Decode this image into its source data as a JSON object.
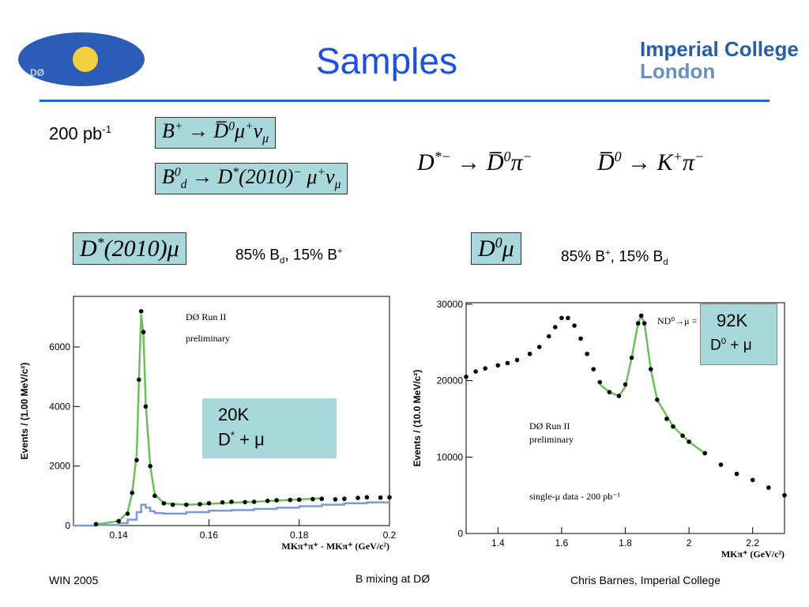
{
  "header": {
    "logo_left": "DØ",
    "title": "Samples",
    "logo_right": [
      "Imperial College",
      "London"
    ]
  },
  "luminosity": [
    "200 pb",
    "-1"
  ],
  "formulas": {
    "b_plus": [
      "B",
      "+",
      " → D̅",
      "0",
      "μ",
      "+",
      "ν",
      "μ"
    ],
    "b_d": [
      "B",
      "0",
      "d",
      " → D",
      "*",
      "(2010)",
      "−",
      " μ",
      "+",
      "ν",
      "μ"
    ],
    "d_star": [
      "D",
      "*−",
      " → D̅",
      "0",
      "π",
      "−"
    ],
    "d0": [
      "D̅",
      "0",
      " → K",
      "+",
      "π",
      "−"
    ],
    "d_star_mu": [
      "D",
      "*",
      "(2010)μ"
    ],
    "d0_mu": [
      "D",
      "0",
      "μ"
    ]
  },
  "fractions": {
    "left": [
      "85% B",
      "d",
      ", 15% B",
      "+"
    ],
    "right": [
      "85% B",
      "+",
      ", 15% B",
      "d"
    ]
  },
  "boxes": {
    "left": [
      "20K",
      "D",
      "*",
      " + μ"
    ],
    "right": [
      "92K",
      "D",
      "0",
      " + μ"
    ]
  },
  "chart_data": [
    {
      "type": "scatter",
      "annotations": [
        "DØ Run II",
        "preliminary"
      ],
      "x_label": "MKπ⁺π⁺ - MKπ⁺ (GeV/c²)",
      "y_label": "Events / (1.00 MeV/c²)",
      "xlim": [
        0.13,
        0.2
      ],
      "ylim": [
        0,
        7700
      ],
      "xticks": [
        0.14,
        0.16,
        0.18,
        0.2
      ],
      "yticks": [
        0,
        2000,
        4000,
        6000
      ],
      "series": [
        {
          "style": "step",
          "color": "#7b9bd6",
          "x": [
            0.13,
            0.135,
            0.14,
            0.142,
            0.144,
            0.145,
            0.146,
            0.147,
            0.148,
            0.15,
            0.155,
            0.16,
            0.165,
            0.17,
            0.175,
            0.18,
            0.185,
            0.19,
            0.195,
            0.2
          ],
          "values": [
            0,
            20,
            80,
            200,
            450,
            700,
            600,
            480,
            420,
            400,
            450,
            500,
            520,
            560,
            600,
            650,
            700,
            750,
            780,
            800
          ]
        },
        {
          "style": "line",
          "color": "#6cbf5a",
          "x": [
            0.135,
            0.14,
            0.142,
            0.143,
            0.144,
            0.1445,
            0.145,
            0.1455,
            0.146,
            0.147,
            0.148,
            0.15,
            0.155,
            0.16,
            0.165,
            0.17,
            0.175,
            0.18,
            0.185
          ],
          "values": [
            40,
            150,
            450,
            1100,
            2400,
            4900,
            7100,
            6400,
            4100,
            2000,
            1050,
            750,
            700,
            730,
            770,
            800,
            840,
            880,
            920
          ]
        },
        {
          "style": "points",
          "color": "#000000",
          "x": [
            0.135,
            0.14,
            0.142,
            0.143,
            0.144,
            0.1445,
            0.145,
            0.1455,
            0.146,
            0.147,
            0.148,
            0.15,
            0.152,
            0.155,
            0.158,
            0.16,
            0.163,
            0.165,
            0.168,
            0.17,
            0.173,
            0.175,
            0.178,
            0.18,
            0.183,
            0.185,
            0.188,
            0.19,
            0.193,
            0.195,
            0.198,
            0.2
          ],
          "values": [
            50,
            150,
            400,
            1100,
            2200,
            4900,
            7200,
            6500,
            4000,
            2000,
            1000,
            750,
            700,
            700,
            720,
            750,
            780,
            800,
            790,
            800,
            830,
            850,
            860,
            870,
            890,
            900,
            880,
            900,
            930,
            950,
            940,
            950
          ]
        }
      ]
    },
    {
      "type": "scatter",
      "annotations": [
        "DØ Run II",
        "preliminary",
        "single-μ data - 200 pb⁻¹",
        "ND⁰→μ ="
      ],
      "x_label": "MKπ⁺ (GeV/c²)",
      "y_label": "Events / (10.0 MeV/c²)",
      "xlim": [
        1.3,
        2.3
      ],
      "ylim": [
        0,
        30200
      ],
      "xticks": [
        1.4,
        1.6,
        1.8,
        2,
        2.2
      ],
      "yticks": [
        0,
        10000,
        20000,
        30000
      ],
      "series": [
        {
          "style": "line",
          "color": "#6cbf5a",
          "x": [
            1.72,
            1.75,
            1.78,
            1.8,
            1.82,
            1.84,
            1.85,
            1.86,
            1.88,
            1.9,
            1.95,
            2.0,
            2.05
          ],
          "values": [
            19500,
            18500,
            18000,
            19200,
            23000,
            27500,
            28500,
            27500,
            21500,
            17500,
            14000,
            12000,
            10500
          ]
        },
        {
          "style": "points",
          "color": "#000000",
          "x": [
            1.3,
            1.33,
            1.36,
            1.4,
            1.43,
            1.46,
            1.5,
            1.53,
            1.56,
            1.58,
            1.6,
            1.62,
            1.64,
            1.66,
            1.68,
            1.7,
            1.72,
            1.75,
            1.78,
            1.8,
            1.82,
            1.84,
            1.85,
            1.86,
            1.88,
            1.9,
            1.93,
            1.95,
            1.98,
            2.0,
            2.05,
            2.1,
            2.15,
            2.2,
            2.25,
            2.3
          ],
          "values": [
            20500,
            21200,
            21600,
            22000,
            22300,
            22700,
            23500,
            24400,
            25800,
            27000,
            28200,
            28200,
            27200,
            25500,
            23500,
            21500,
            19800,
            18500,
            18000,
            19500,
            23000,
            27500,
            28500,
            27500,
            21500,
            17500,
            15000,
            14000,
            12800,
            12000,
            10500,
            9000,
            7800,
            7000,
            6000,
            5000
          ]
        }
      ]
    }
  ],
  "footer": {
    "left": "WIN 2005",
    "center": "B mixing at DØ",
    "right": "Chris Barnes, Imperial College"
  }
}
